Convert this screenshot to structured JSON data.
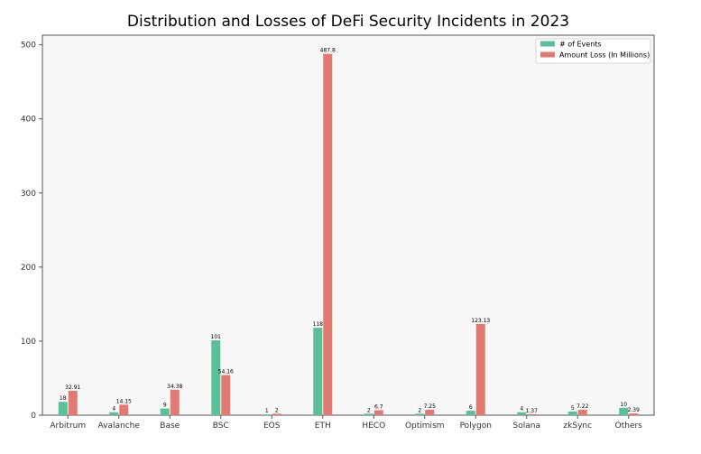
{
  "chart_data": {
    "type": "bar",
    "title": "Distribution and Losses of DeFi Security Incidents in 2023",
    "xlabel": "",
    "ylabel": "",
    "categories": [
      "Arbitrum",
      "Avalanche",
      "Base",
      "BSC",
      "EOS",
      "ETH",
      "HECO",
      "Optimism",
      "Polygon",
      "Solana",
      "zkSync",
      "Others"
    ],
    "series": [
      {
        "name": "# of Events",
        "values": [
          18,
          4,
          9,
          101,
          1,
          118,
          2,
          2,
          6,
          4,
          5,
          10
        ],
        "labels": [
          "18",
          "4",
          "9",
          "101",
          "1",
          "118",
          "2",
          "2",
          "6",
          "4",
          "5",
          "10"
        ]
      },
      {
        "name": "Amount Loss (In Millions)",
        "values": [
          32.91,
          14.15,
          34.38,
          54.16,
          2,
          487.8,
          6.7,
          7.25,
          123.13,
          1.37,
          7.22,
          2.39
        ],
        "labels": [
          "32.91",
          "14.15",
          "34.38",
          "54.16",
          "2",
          "487.8",
          "6.7",
          "7.25",
          "123.13",
          "1.37",
          "7.22",
          "2.39"
        ]
      }
    ],
    "ylim": [
      0,
      513
    ],
    "yticks": [
      "0",
      "100",
      "200",
      "300",
      "400",
      "500"
    ],
    "grid": false,
    "legend_position": "top-right",
    "colors": {
      "events": "#5bbf98",
      "loss": "#e07a72",
      "plot_bg": "#f7f7f7",
      "axis": "#555555"
    }
  }
}
